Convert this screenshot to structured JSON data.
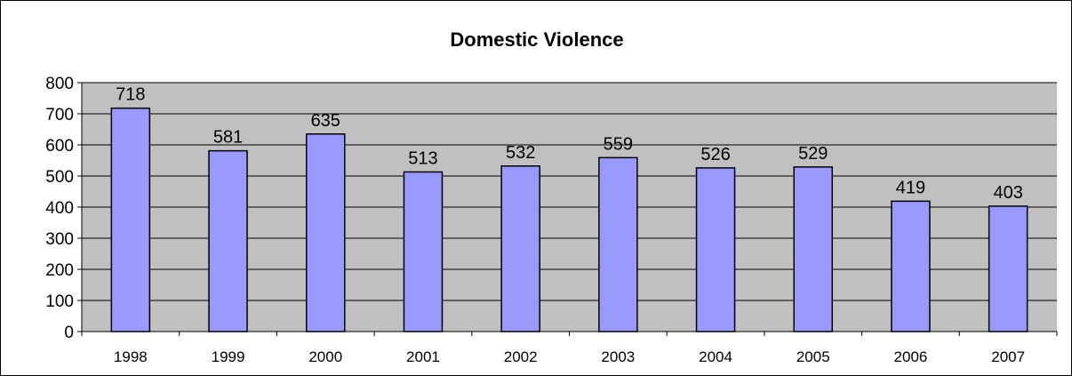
{
  "chart_data": {
    "type": "bar",
    "title": "Domestic Violence",
    "categories": [
      "1998",
      "1999",
      "2000",
      "2001",
      "2002",
      "2003",
      "2004",
      "2005",
      "2006",
      "2007"
    ],
    "values": [
      718,
      581,
      635,
      513,
      532,
      559,
      526,
      529,
      419,
      403
    ],
    "data_labels": [
      "718",
      "581",
      "635",
      "513",
      "532",
      "559",
      "526",
      "529",
      "419",
      "403"
    ],
    "yticks": [
      "0",
      "100",
      "200",
      "300",
      "400",
      "500",
      "600",
      "700",
      "800"
    ],
    "ylim": [
      0,
      800
    ],
    "grid": true,
    "legend": false,
    "colors": {
      "bar_fill": "#9999ff",
      "bar_stroke": "#000000",
      "plot_background": "#c0c0c0",
      "gridline": "#000000"
    }
  }
}
